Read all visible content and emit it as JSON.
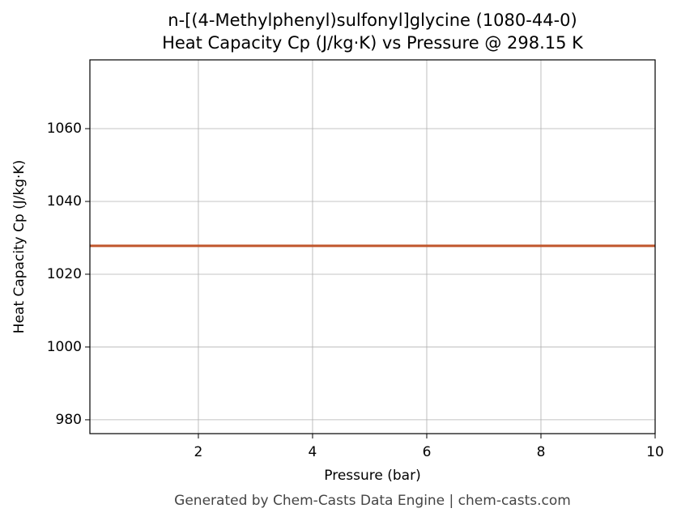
{
  "chart_data": {
    "type": "line",
    "title": "n-[(4-Methylphenyl)sulfonyl]glycine (1080-44-0)",
    "subtitle": "Heat Capacity Cp (J/kg·K) vs Pressure @ 298.15 K",
    "x_label": "Pressure (bar)",
    "y_label": "Heat Capacity Cp (J/kg·K)",
    "footer": "Generated by Chem-Casts Data Engine | chem-casts.com",
    "x": [
      0.1,
      10
    ],
    "series": [
      {
        "color": "#c0562c",
        "values": [
          1027.8,
          1027.8
        ]
      }
    ],
    "xlim": [
      0.1,
      10
    ],
    "xticks": [
      2,
      4,
      6,
      8,
      10
    ],
    "ylim": [
      976.2,
      1078.9
    ],
    "yticks": [
      980,
      1000,
      1020,
      1040,
      1060
    ],
    "grid": true
  }
}
